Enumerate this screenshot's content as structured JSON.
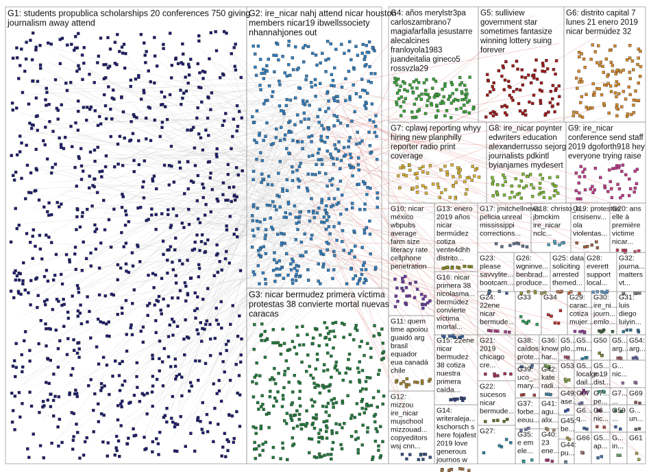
{
  "groups": [
    {
      "lines": [
        "G1: students propublica scholarships 20 conferences 750 giving",
        "journalism away attend"
      ]
    },
    {
      "lines": [
        "G2: ire_nicar nahj attend nicar houston",
        "members nicar19 ibwellssociety",
        "nhannahjones out"
      ]
    },
    {
      "lines": [
        "G3: nicar bermudez primera víctima",
        "protestas 38 convierte mortal nuevas",
        "caracas"
      ]
    },
    {
      "lines": [
        "G4: años merylstr3pa",
        "carloszambrano7",
        "magiafarfalla jesustarre",
        "alecalcines",
        "franloyola1983",
        "juandeitalia gineco5",
        "rossvzla29"
      ]
    },
    {
      "lines": [
        "G5: sulliview",
        "government star",
        "sometimes fantasize",
        "winning lottery suing",
        "forever"
      ]
    },
    {
      "lines": [
        "G6: distrito capital 7",
        "lunes 21 enero 2019",
        "nicar bermúdez 32"
      ]
    },
    {
      "lines": [
        "G7: cplawj reporting whyy",
        "hiring new planphilly",
        "reporter radio print",
        "coverage"
      ]
    },
    {
      "lines": [
        "G8: ire_nicar poynter",
        "edwriters education",
        "alexanderrusso sejorg",
        "journalists pdkintl",
        "byianjames mydesert"
      ]
    },
    {
      "lines": [
        "G9: ire_nicar",
        "conference send staff",
        "2019 dgoforth918 hey",
        "everyone trying raise"
      ]
    },
    {
      "lines": [
        "G10: nicar",
        "méxico",
        "wbpubs",
        "average",
        "farm size",
        "literacy rate",
        "cellphone",
        "penetration"
      ]
    },
    {
      "lines": [
        "G13: enero",
        "2019 años",
        "nicar",
        "bermúdez",
        "cotiza",
        "vente4dhh",
        "distrito..."
      ]
    },
    {
      "lines": [
        "G17: jmitchellnews",
        "pelicia unreal",
        "mississippi",
        "corrections..."
      ]
    },
    {
      "lines": [
        "G18: christo_b...",
        "jbmckim",
        "ire_nicar",
        "nclc..."
      ]
    },
    {
      "lines": [
        "G19: protestas",
        "crisisenv...",
        "ola",
        "violentas..."
      ]
    },
    {
      "lines": [
        "G20: ans",
        "elle à",
        "première",
        "victime",
        "nicar..."
      ]
    },
    {
      "lines": [
        "G23:",
        "please",
        "savvylite...",
        "bootcam..."
      ]
    },
    {
      "lines": [
        "G26:",
        "wgninve...",
        "benbrad...",
        "produce..."
      ]
    },
    {
      "lines": [
        "G25: data",
        "soliciting",
        "arrested",
        "themed..."
      ]
    },
    {
      "lines": [
        "G28:",
        "everett",
        "support",
        "local..."
      ]
    },
    {
      "lines": [
        "G32:",
        "journa...",
        "matters",
        "vt..."
      ]
    },
    {
      "lines": [
        "G16: nicar",
        "primera 38",
        "nicolasma...",
        "bermúdez",
        "convierte",
        "víctima",
        "mortal..."
      ]
    },
    {
      "lines": [
        "G24:",
        "22ene",
        "nicar",
        "bermude..."
      ]
    },
    {
      "lines": [
        "G33"
      ]
    },
    {
      "lines": [
        "G34"
      ]
    },
    {
      "lines": [
        "G29:",
        "carac...",
        "cotiza",
        "mujer..."
      ]
    },
    {
      "lines": [
        "G30:",
        "ire_ni...",
        "journ...",
        "emlo..."
      ]
    },
    {
      "lines": [
        "G31:",
        "luis",
        "diego",
        "luiyin..."
      ]
    },
    {
      "lines": [
        "G11: quem",
        "time apoiou",
        "guaidó arg",
        "brasil",
        "equador",
        "eua canadá",
        "chile"
      ]
    },
    {
      "lines": [
        "G15: 22ene",
        "nicar",
        "bermudez",
        "38 cotiza",
        "nuestra",
        "primera",
        "caída..."
      ]
    },
    {
      "lines": [
        "G21:",
        "2019",
        "chicago",
        "cre..."
      ]
    },
    {
      "lines": [
        "G38:",
        "caídos",
        "prote..."
      ]
    },
    {
      "lines": [
        "G36:",
        "know",
        "har..."
      ]
    },
    {
      "lines": [
        "G5...",
        "plo..."
      ]
    },
    {
      "lines": [
        "G5...",
        "mu..."
      ]
    },
    {
      "lines": [
        "G50"
      ]
    },
    {
      "lines": [
        "G5...",
        "arg..."
      ]
    },
    {
      "lines": [
        "G54:",
        "arg..."
      ]
    },
    {
      "lines": [
        "G12:",
        "mizzou",
        "ire_nicar",
        "mujschool",
        "mizzouad...",
        "copyeditors",
        "wsj cnn..."
      ]
    },
    {
      "lines": [
        "G14:",
        "writeraleja...",
        "kschorsch s",
        "here fojafest",
        "2019 love",
        "generous",
        "journos w"
      ]
    },
    {
      "lines": [
        "G22:",
        "sucesos",
        "nicar",
        "bermude..."
      ]
    },
    {
      "lines": [
        "G27:"
      ]
    },
    {
      "lines": [
        "G39:",
        "uco_...",
        "mary..."
      ]
    },
    {
      "lines": [
        "G42:",
        "kate",
        "radi..."
      ]
    },
    {
      "lines": [
        "G53"
      ]
    },
    {
      "lines": [
        "G5...",
        "localgo...",
        "dail..."
      ]
    },
    {
      "lines": [
        "G5...",
        "e 19",
        "dist..."
      ]
    },
    {
      "lines": [
        "G...",
        "nic..."
      ]
    },
    {
      "lines": [
        "G37:",
        "forbe...",
        "eeuu..."
      ]
    },
    {
      "lines": [
        "G41:",
        "agu...",
        "alix..."
      ]
    },
    {
      "lines": [
        "G49:",
        "ase..."
      ]
    },
    {
      "lines": [
        "G67"
      ]
    },
    {
      "lines": [
        "G7...",
        "pe..."
      ]
    },
    {
      "lines": [
        "G7...",
        "..."
      ]
    },
    {
      "lines": [
        "G69"
      ]
    },
    {
      "lines": [
        "G45:",
        "be..."
      ]
    },
    {
      "lines": [
        "G6...",
        "q..."
      ]
    },
    {
      "lines": [
        "G6...",
        "nic..."
      ]
    },
    {
      "lines": [
        "G59",
        "..."
      ]
    },
    {
      "lines": [
        "G...",
        "un..."
      ]
    },
    {
      "lines": [
        "G35:",
        "e em",
        "ele..."
      ]
    },
    {
      "lines": [
        "G40:",
        "23",
        "ene..."
      ]
    },
    {
      "lines": [
        "G44:",
        "pu..."
      ]
    },
    {
      "lines": [
        "G66"
      ]
    },
    {
      "lines": [
        "G5...",
        "ap..."
      ]
    },
    {
      "lines": [
        "G...",
        "in..."
      ]
    },
    {
      "lines": [
        "G61"
      ]
    }
  ]
}
